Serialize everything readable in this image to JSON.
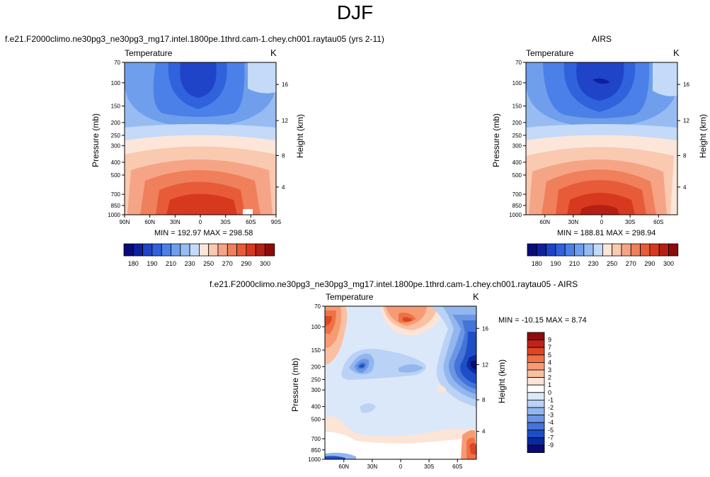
{
  "page": {
    "season_title": "DJF",
    "diff_title": "f.e21.F2000climo.ne30pg3_ne30pg3_mg17.intel.1800pe.1thrd.cam-1.chey.ch001.raytau05 - AIRS"
  },
  "chart_data": [
    {
      "type": "heatmap",
      "title": "f.e21.F2000climo.ne30pg3_ne30pg3_mg17.intel.1800pe.1thrd.cam-1.chey.ch001.raytau05 (yrs 2-11)",
      "variable": "Temperature",
      "units": "K",
      "xlabel": "",
      "ylabel": "Pressure (mb)",
      "ylabel_right": "Height (km)",
      "x_ticks": [
        "90N",
        "60N",
        "30N",
        "0",
        "30S",
        "60S",
        "90S"
      ],
      "y_ticks": [
        "70",
        "100",
        "150",
        "200",
        "250",
        "300",
        "400",
        "500",
        "700",
        "850",
        "1000"
      ],
      "y_ticks_right": [
        "16",
        "12",
        "8",
        "4"
      ],
      "xlim": [
        90,
        -90
      ],
      "ylim": [
        1000,
        70
      ],
      "min_max_text": "MIN = 192.97  MAX = 298.58",
      "fields_min": 192.97,
      "fields_max": 298.58,
      "colorbar_levels": [
        180,
        190,
        210,
        230,
        250,
        270,
        290,
        300
      ]
    },
    {
      "type": "heatmap",
      "title": "AIRS",
      "variable": "Temperature",
      "units": "K",
      "ylabel": "Pressure (mb)",
      "ylabel_right": "Height (km)",
      "x_ticks": [
        "60N",
        "30N",
        "0",
        "30S",
        "60S"
      ],
      "y_ticks": [
        "70",
        "100",
        "150",
        "200",
        "250",
        "300",
        "400",
        "500",
        "700",
        "850",
        "1000"
      ],
      "y_ticks_right": [
        "16",
        "12",
        "8",
        "4"
      ],
      "xlim": [
        80,
        -80
      ],
      "ylim": [
        1000,
        70
      ],
      "min_max_text": "MIN = 188.81  MAX = 298.94",
      "fields_min": 188.81,
      "fields_max": 298.94,
      "colorbar_levels": [
        180,
        190,
        210,
        230,
        250,
        270,
        290,
        300
      ]
    },
    {
      "type": "heatmap",
      "title": "f.e21.F2000climo.ne30pg3_ne30pg3_mg17.intel.1800pe.1thrd.cam-1.chey.ch001.raytau05 - AIRS",
      "variable": "Temperature",
      "units": "K",
      "ylabel": "Pressure (mb)",
      "ylabel_right": "Height (km)",
      "x_ticks": [
        "60N",
        "30N",
        "0",
        "30S",
        "60S"
      ],
      "y_ticks": [
        "70",
        "100",
        "150",
        "200",
        "250",
        "300",
        "400",
        "500",
        "700",
        "850",
        "1000"
      ],
      "y_ticks_right": [
        "16",
        "12",
        "8",
        "4"
      ],
      "xlim": [
        80,
        -80
      ],
      "ylim": [
        1000,
        70
      ],
      "min_max_text": "MIN = -10.15  MAX =   8.74",
      "fields_min": -10.15,
      "fields_max": 8.74,
      "colorbar_levels": [
        "9",
        "7",
        "5",
        "4",
        "3",
        "2",
        "1",
        "0",
        "-1",
        "-2",
        "-3",
        "-4",
        "-5",
        "-7",
        "-9"
      ]
    }
  ],
  "colors": {
    "abs_palette": [
      "#0a0a7a",
      "#0f1f9e",
      "#1f44c8",
      "#2f62dc",
      "#4a80e8",
      "#6f9eec",
      "#98bcf2",
      "#c4daf8",
      "#fbe6d9",
      "#f9c9b0",
      "#f5a585",
      "#f07f5b",
      "#e85b38",
      "#d7391e",
      "#b51f14",
      "#8c0c0c"
    ],
    "diff_palette": [
      "#8c0c0c",
      "#c0221a",
      "#de4624",
      "#ee7246",
      "#f69b74",
      "#f9c0a2",
      "#fce4d6",
      "#ffffff",
      "#dbe8fa",
      "#b9d2f5",
      "#92b6ee",
      "#6b96e4",
      "#4474d8",
      "#1e4ec6",
      "#0a2a9c",
      "#0a0a74"
    ]
  }
}
